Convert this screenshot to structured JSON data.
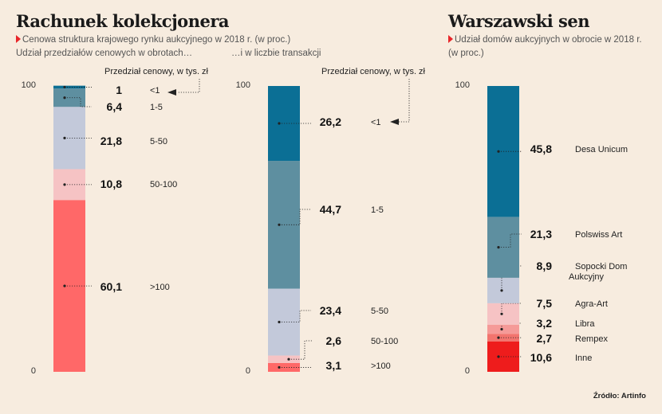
{
  "left_section": {
    "title": "Rachunek kolekcjonera",
    "subtitle_line1": "Cenowa struktura krajowego rynku aukcyjnego w 2018 r. (w proc.)",
    "subtitle_line2a": "Udział przedziałów cenowych w obrotach…",
    "subtitle_line2b": "…i w liczbie transakcji",
    "legend_label_1": "Przedział cenowy, w tys. zł",
    "legend_label_2": "Przedział cenowy, w tys. zł"
  },
  "right_section": {
    "title": "Warszawski sen",
    "subtitle_line1": "Udział domów aukcyjnych w obrocie w 2018 r.",
    "subtitle_line2": "(w proc.)"
  },
  "source": "Źródło: Artinfo",
  "colors": {
    "blue": "#0b6f95",
    "teal_gray": "#5e8fa0",
    "lavender": "#c3c9da",
    "light_pink": "#f6c3c4",
    "salmon": "#ff6868",
    "pink": "#f59a98",
    "coral": "#f2746e",
    "red": "#ee1c1c"
  },
  "chart_data": [
    {
      "type": "bar",
      "stacked": true,
      "name": "Udział przedziałów cenowych w obrotach",
      "ylim": [
        0,
        100
      ],
      "ytick_labels": [
        "100",
        "0"
      ],
      "categories": [
        ">100",
        "50-100",
        "5-50",
        "1-5",
        "<1"
      ],
      "values": [
        60.1,
        10.8,
        21.8,
        6.4,
        1
      ],
      "value_labels": [
        "60,1",
        "10,8",
        "21,8",
        "6,4",
        "1"
      ],
      "colors": [
        "#ff6868",
        "#f6c3c4",
        "#c3c9da",
        "#5e8fa0",
        "#0b6f95"
      ]
    },
    {
      "type": "bar",
      "stacked": true,
      "name": "Udział przedziałów cenowych w liczbie transakcji",
      "ylim": [
        0,
        100
      ],
      "ytick_labels": [
        "100",
        "0"
      ],
      "categories": [
        ">100",
        "50-100",
        "5-50",
        "1-5",
        "<1"
      ],
      "values": [
        3.1,
        2.6,
        23.4,
        44.7,
        26.2
      ],
      "value_labels": [
        "3,1",
        "2,6",
        "23,4",
        "44,7",
        "26,2"
      ],
      "colors": [
        "#ff6868",
        "#f6c3c4",
        "#c3c9da",
        "#5e8fa0",
        "#0b6f95"
      ]
    },
    {
      "type": "bar",
      "stacked": true,
      "name": "Udział domów aukcyjnych w obrocie w 2018 r.",
      "ylim": [
        0,
        100
      ],
      "ytick_labels": [
        "100",
        "0"
      ],
      "categories": [
        "Inne",
        "Rempex",
        "Libra",
        "Agra-Art",
        "Sopocki Dom Aukcyjny",
        "Polswiss Art",
        "Desa Unicum"
      ],
      "category_label_lines": [
        [
          "Inne"
        ],
        [
          "Rempex"
        ],
        [
          "Libra"
        ],
        [
          "Agra-Art"
        ],
        [
          "Sopocki Dom",
          "Aukcyjny"
        ],
        [
          "Polswiss Art"
        ],
        [
          "Desa Unicum"
        ]
      ],
      "values": [
        10.6,
        2.7,
        3.2,
        7.5,
        8.9,
        21.3,
        45.8
      ],
      "value_labels": [
        "10,6",
        "2,7",
        "3,2",
        "7,5",
        "8,9",
        "21,3",
        "45,8"
      ],
      "colors": [
        "#ee1c1c",
        "#f2746e",
        "#f59a98",
        "#f6c3c4",
        "#c3c9da",
        "#5e8fa0",
        "#0b6f95"
      ]
    }
  ]
}
